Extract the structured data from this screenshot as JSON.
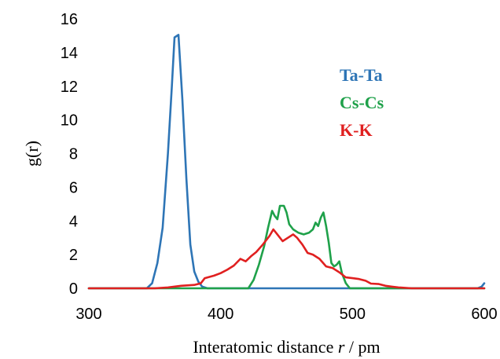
{
  "chart_data": {
    "type": "line",
    "xlabel_prefix": "Interatomic distance ",
    "xlabel_var": "r",
    "xlabel_suffix": " / pm",
    "ylabel": "g(r)",
    "xlim": [
      300,
      600
    ],
    "ylim": [
      0,
      16
    ],
    "x_ticks": [
      300,
      400,
      500,
      600
    ],
    "y_ticks": [
      0,
      2,
      4,
      6,
      8,
      10,
      12,
      14,
      16
    ],
    "grid": false,
    "legend_position": "top-right",
    "series": [
      {
        "name": "Ta-Ta",
        "color": "#2E75B6",
        "points": [
          [
            300,
            0
          ],
          [
            344,
            0
          ],
          [
            348,
            0.3
          ],
          [
            352,
            1.5
          ],
          [
            356,
            3.6
          ],
          [
            360,
            8
          ],
          [
            363,
            12
          ],
          [
            365,
            14.9
          ],
          [
            368,
            15.05
          ],
          [
            371,
            11.2
          ],
          [
            374,
            6.5
          ],
          [
            377,
            2.6
          ],
          [
            380,
            1.0
          ],
          [
            383,
            0.4
          ],
          [
            386,
            0.1
          ],
          [
            390,
            0
          ],
          [
            595,
            0
          ],
          [
            598,
            0.1
          ],
          [
            600,
            0.3
          ]
        ]
      },
      {
        "name": "Cs-Cs",
        "color": "#1FA14A",
        "points": [
          [
            300,
            0
          ],
          [
            421,
            0
          ],
          [
            425,
            0.5
          ],
          [
            429,
            1.4
          ],
          [
            433,
            2.5
          ],
          [
            436,
            3.6
          ],
          [
            439,
            4.6
          ],
          [
            441,
            4.3
          ],
          [
            443,
            4.1
          ],
          [
            445,
            4.9
          ],
          [
            448,
            4.9
          ],
          [
            450,
            4.5
          ],
          [
            452,
            3.8
          ],
          [
            455,
            3.5
          ],
          [
            459,
            3.3
          ],
          [
            463,
            3.2
          ],
          [
            467,
            3.3
          ],
          [
            470,
            3.5
          ],
          [
            472,
            3.9
          ],
          [
            474,
            3.7
          ],
          [
            476,
            4.2
          ],
          [
            478,
            4.5
          ],
          [
            480,
            3.7
          ],
          [
            482,
            2.7
          ],
          [
            484,
            1.5
          ],
          [
            486,
            1.3
          ],
          [
            488,
            1.4
          ],
          [
            490,
            1.6
          ],
          [
            492,
            0.9
          ],
          [
            495,
            0.3
          ],
          [
            498,
            0
          ],
          [
            600,
            0
          ]
        ]
      },
      {
        "name": "K-K",
        "color": "#E02020",
        "points": [
          [
            300,
            0
          ],
          [
            350,
            0
          ],
          [
            360,
            0.05
          ],
          [
            370,
            0.15
          ],
          [
            380,
            0.2
          ],
          [
            385,
            0.3
          ],
          [
            388,
            0.6
          ],
          [
            395,
            0.75
          ],
          [
            400,
            0.9
          ],
          [
            405,
            1.1
          ],
          [
            410,
            1.35
          ],
          [
            415,
            1.75
          ],
          [
            419,
            1.6
          ],
          [
            423,
            1.9
          ],
          [
            427,
            2.15
          ],
          [
            432,
            2.6
          ],
          [
            437,
            3.1
          ],
          [
            440,
            3.5
          ],
          [
            443,
            3.2
          ],
          [
            447,
            2.8
          ],
          [
            451,
            3.0
          ],
          [
            455,
            3.2
          ],
          [
            458,
            3.0
          ],
          [
            462,
            2.6
          ],
          [
            466,
            2.1
          ],
          [
            470,
            2.0
          ],
          [
            475,
            1.75
          ],
          [
            480,
            1.3
          ],
          [
            485,
            1.2
          ],
          [
            490,
            0.95
          ],
          [
            495,
            0.65
          ],
          [
            500,
            0.6
          ],
          [
            505,
            0.55
          ],
          [
            510,
            0.45
          ],
          [
            514,
            0.28
          ],
          [
            520,
            0.25
          ],
          [
            525,
            0.15
          ],
          [
            530,
            0.1
          ],
          [
            535,
            0.05
          ],
          [
            545,
            0
          ],
          [
            600,
            0
          ]
        ]
      }
    ]
  }
}
